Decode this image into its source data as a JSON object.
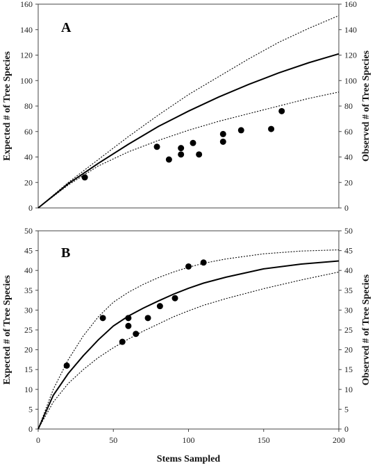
{
  "chart_data": [
    {
      "type": "line",
      "panel_label": "A",
      "ylabel_left": "Expected # of Tree Species",
      "ylabel_right": "Observed # of Tree Species",
      "xlabel": "",
      "xlim": [
        0,
        200
      ],
      "ylim": [
        0,
        160
      ],
      "yticks": [
        0,
        20,
        40,
        60,
        80,
        100,
        120,
        140,
        160
      ],
      "grid": false,
      "series": [
        {
          "role": "expected",
          "style": "solid",
          "x": [
            0,
            20,
            40,
            60,
            80,
            100,
            120,
            140,
            160,
            180,
            200
          ],
          "y": [
            0,
            19,
            35,
            50,
            64,
            76,
            87,
            97,
            106,
            114,
            121
          ]
        },
        {
          "role": "upper",
          "style": "dotted",
          "x": [
            0,
            20,
            40,
            60,
            80,
            100,
            120,
            140,
            160,
            180,
            200
          ],
          "y": [
            0,
            20,
            38,
            56,
            73,
            89,
            103,
            117,
            130,
            141,
            151
          ]
        },
        {
          "role": "lower",
          "style": "dotted",
          "x": [
            0,
            20,
            40,
            60,
            80,
            100,
            120,
            140,
            160,
            180,
            200
          ],
          "y": [
            0,
            18,
            33,
            44,
            53,
            61,
            68,
            74,
            80,
            86,
            91
          ]
        },
        {
          "role": "observed",
          "style": "scatter",
          "x": [
            31,
            79,
            87,
            95,
            95,
            103,
            107,
            123,
            123,
            135,
            155,
            162
          ],
          "y": [
            24,
            48,
            38,
            47,
            42,
            51,
            42,
            58,
            52,
            61,
            62,
            76
          ]
        }
      ]
    },
    {
      "type": "line",
      "panel_label": "B",
      "ylabel_left": "Expected # of Tree Species",
      "ylabel_right": "Observed # of Tree Species",
      "xlabel": "Stems Sampled",
      "xlim": [
        0,
        200
      ],
      "ylim": [
        0,
        50
      ],
      "yticks": [
        0,
        5,
        10,
        15,
        20,
        25,
        30,
        35,
        40,
        45,
        50
      ],
      "xticks": [
        0,
        50,
        100,
        150,
        200
      ],
      "grid": false,
      "series": [
        {
          "role": "expected",
          "style": "solid",
          "x": [
            0,
            10,
            20,
            30,
            40,
            50,
            60,
            70,
            80,
            90,
            100,
            110,
            125,
            150,
            175,
            200
          ],
          "y": [
            0,
            8.5,
            14,
            18.5,
            22.5,
            26,
            28.5,
            30.5,
            32.3,
            34,
            35.5,
            36.8,
            38.3,
            40.4,
            41.6,
            42.4
          ]
        },
        {
          "role": "upper",
          "style": "dotted",
          "x": [
            0,
            10,
            20,
            30,
            40,
            50,
            60,
            70,
            80,
            90,
            100,
            110,
            125,
            150,
            175,
            200
          ],
          "y": [
            0,
            10,
            17.5,
            23.5,
            28.3,
            32,
            34.5,
            36.5,
            38.2,
            39.6,
            40.8,
            41.8,
            42.9,
            44.2,
            44.9,
            45.2
          ]
        },
        {
          "role": "lower",
          "style": "dotted",
          "x": [
            0,
            10,
            20,
            30,
            40,
            50,
            60,
            70,
            80,
            90,
            100,
            110,
            125,
            150,
            175,
            200
          ],
          "y": [
            0,
            6.8,
            11.5,
            15,
            18,
            20.5,
            22.7,
            24.7,
            26.5,
            28.3,
            29.8,
            31.2,
            32.9,
            35.4,
            37.6,
            39.6
          ]
        },
        {
          "role": "observed",
          "style": "scatter",
          "x": [
            19,
            43,
            56,
            60,
            60,
            65,
            73,
            81,
            91,
            100,
            110
          ],
          "y": [
            16,
            28,
            22,
            28,
            26,
            24,
            28,
            31,
            33,
            41,
            42
          ]
        }
      ]
    }
  ]
}
